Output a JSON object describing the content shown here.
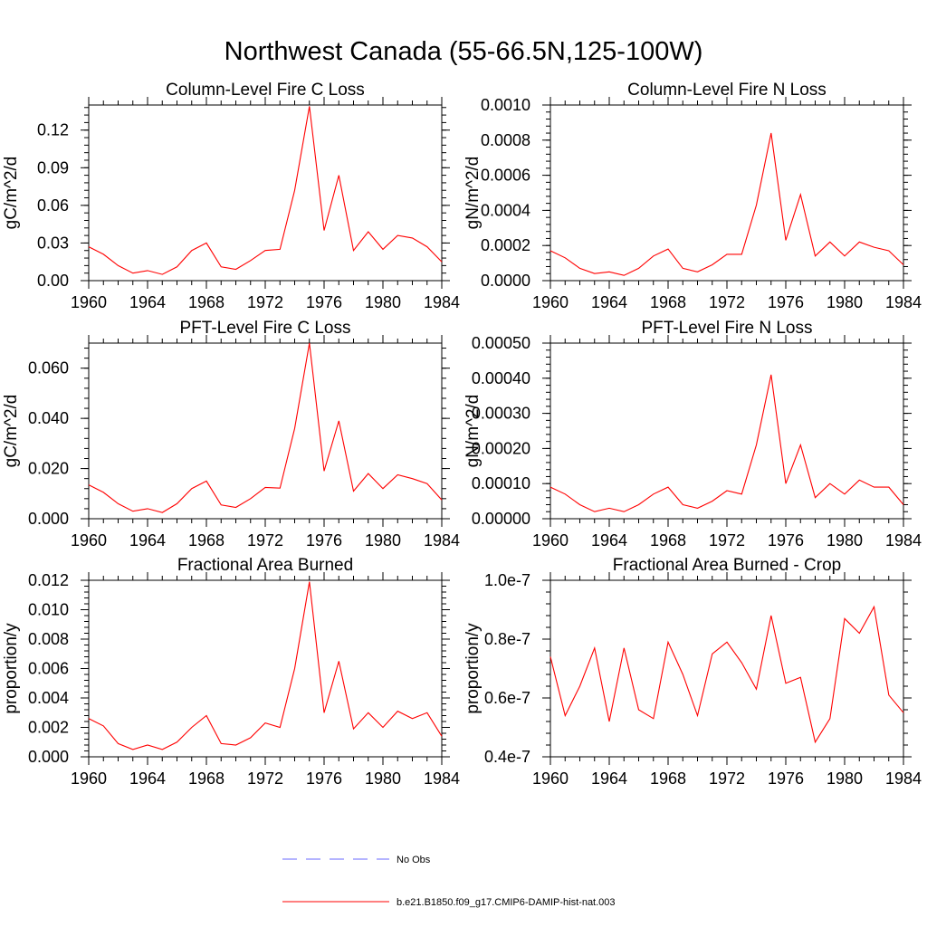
{
  "figure": {
    "title": "Northwest Canada (55-66.5N,125-100W)"
  },
  "colors": {
    "model": "#ff0000",
    "obs": "#6a6aff",
    "axis": "#000000"
  },
  "legend": {
    "obs_label": "No Obs",
    "model_label": "b.e21.B1850.f09_g17.CMIP6-DAMIP-hist-nat.003"
  },
  "chart_data": [
    {
      "type": "line",
      "title": "Column-Level Fire C Loss",
      "ylabel": "gC/m^2/d",
      "xlim": [
        1960,
        1984
      ],
      "ylim": [
        0,
        0.14
      ],
      "xticks": [
        "1960",
        "1964",
        "1968",
        "1972",
        "1976",
        "1980",
        "1984"
      ],
      "yticks": [
        {
          "v": 0,
          "label": "0.00"
        },
        {
          "v": 0.03,
          "label": "0.03"
        },
        {
          "v": 0.06,
          "label": "0.06"
        },
        {
          "v": 0.09,
          "label": "0.09"
        },
        {
          "v": 0.12,
          "label": "0.12"
        }
      ],
      "series": [
        {
          "name": "b.e21.B1850.f09_g17.CMIP6-DAMIP-hist-nat.003",
          "x": [
            1960,
            1961,
            1962,
            1963,
            1964,
            1965,
            1966,
            1967,
            1968,
            1969,
            1970,
            1971,
            1972,
            1973,
            1974,
            1975,
            1976,
            1977,
            1978,
            1979,
            1980,
            1981,
            1982,
            1983,
            1984
          ],
          "y": [
            0.027,
            0.021,
            0.012,
            0.006,
            0.008,
            0.005,
            0.011,
            0.024,
            0.03,
            0.011,
            0.009,
            0.016,
            0.024,
            0.025,
            0.072,
            0.139,
            0.04,
            0.084,
            0.024,
            0.039,
            0.025,
            0.036,
            0.034,
            0.027,
            0.015
          ]
        }
      ]
    },
    {
      "type": "line",
      "title": "Column-Level Fire N Loss",
      "ylabel": "gN/m^2/d",
      "xlim": [
        1960,
        1984
      ],
      "ylim": [
        0,
        0.001
      ],
      "xticks": [
        "1960",
        "1964",
        "1968",
        "1972",
        "1976",
        "1980",
        "1984"
      ],
      "yticks": [
        {
          "v": 0,
          "label": "0.0000"
        },
        {
          "v": 0.0002,
          "label": "0.0002"
        },
        {
          "v": 0.0004,
          "label": "0.0004"
        },
        {
          "v": 0.0006,
          "label": "0.0006"
        },
        {
          "v": 0.0008,
          "label": "0.0008"
        },
        {
          "v": 0.001,
          "label": "0.0010"
        }
      ],
      "series": [
        {
          "name": "b.e21.B1850.f09_g17.CMIP6-DAMIP-hist-nat.003",
          "x": [
            1960,
            1961,
            1962,
            1963,
            1964,
            1965,
            1966,
            1967,
            1968,
            1969,
            1970,
            1971,
            1972,
            1973,
            1974,
            1975,
            1976,
            1977,
            1978,
            1979,
            1980,
            1981,
            1982,
            1983,
            1984
          ],
          "y": [
            0.00017,
            0.00013,
            7e-05,
            4e-05,
            5e-05,
            3e-05,
            7e-05,
            0.00014,
            0.00018,
            7e-05,
            5e-05,
            9e-05,
            0.00015,
            0.00015,
            0.00043,
            0.00084,
            0.00023,
            0.00049,
            0.00014,
            0.00022,
            0.00014,
            0.00022,
            0.00019,
            0.00017,
            9e-05
          ]
        }
      ]
    },
    {
      "type": "line",
      "title": "PFT-Level Fire C Loss",
      "ylabel": "gC/m^2/d",
      "xlim": [
        1960,
        1984
      ],
      "ylim": [
        0,
        0.07
      ],
      "xticks": [
        "1960",
        "1964",
        "1968",
        "1972",
        "1976",
        "1980",
        "1984"
      ],
      "yticks": [
        {
          "v": 0,
          "label": "0.000"
        },
        {
          "v": 0.02,
          "label": "0.020"
        },
        {
          "v": 0.04,
          "label": "0.040"
        },
        {
          "v": 0.06,
          "label": "0.060"
        }
      ],
      "series": [
        {
          "name": "b.e21.B1850.f09_g17.CMIP6-DAMIP-hist-nat.003",
          "x": [
            1960,
            1961,
            1962,
            1963,
            1964,
            1965,
            1966,
            1967,
            1968,
            1969,
            1970,
            1971,
            1972,
            1973,
            1974,
            1975,
            1976,
            1977,
            1978,
            1979,
            1980,
            1981,
            1982,
            1983,
            1984
          ],
          "y": [
            0.0135,
            0.0105,
            0.006,
            0.003,
            0.004,
            0.0025,
            0.006,
            0.012,
            0.015,
            0.0055,
            0.0045,
            0.008,
            0.0125,
            0.0122,
            0.036,
            0.07,
            0.019,
            0.039,
            0.011,
            0.018,
            0.012,
            0.0175,
            0.016,
            0.014,
            0.0075
          ]
        }
      ]
    },
    {
      "type": "line",
      "title": "PFT-Level Fire N Loss",
      "ylabel": "gN/m^2/d",
      "xlim": [
        1960,
        1984
      ],
      "ylim": [
        0,
        0.0005
      ],
      "xticks": [
        "1960",
        "1964",
        "1968",
        "1972",
        "1976",
        "1980",
        "1984"
      ],
      "yticks": [
        {
          "v": 0,
          "label": "0.00000"
        },
        {
          "v": 0.0001,
          "label": "0.00010"
        },
        {
          "v": 0.0002,
          "label": "0.00020"
        },
        {
          "v": 0.0003,
          "label": "0.00030"
        },
        {
          "v": 0.0004,
          "label": "0.00040"
        },
        {
          "v": 0.0005,
          "label": "0.00050"
        }
      ],
      "series": [
        {
          "name": "b.e21.B1850.f09_g17.CMIP6-DAMIP-hist-nat.003",
          "x": [
            1960,
            1961,
            1962,
            1963,
            1964,
            1965,
            1966,
            1967,
            1968,
            1969,
            1970,
            1971,
            1972,
            1973,
            1974,
            1975,
            1976,
            1977,
            1978,
            1979,
            1980,
            1981,
            1982,
            1983,
            1984
          ],
          "y": [
            9e-05,
            7e-05,
            4e-05,
            2e-05,
            3e-05,
            2e-05,
            4e-05,
            7e-05,
            9e-05,
            4e-05,
            3e-05,
            5e-05,
            8e-05,
            7e-05,
            0.00021,
            0.00041,
            0.0001,
            0.00021,
            6e-05,
            0.0001,
            7e-05,
            0.00011,
            9e-05,
            9e-05,
            4e-05
          ]
        }
      ]
    },
    {
      "type": "line",
      "title": "Fractional Area Burned",
      "ylabel": "proportion/y",
      "xlim": [
        1960,
        1984
      ],
      "ylim": [
        0,
        0.012
      ],
      "xticks": [
        "1960",
        "1964",
        "1968",
        "1972",
        "1976",
        "1980",
        "1984"
      ],
      "yticks": [
        {
          "v": 0,
          "label": "0.000"
        },
        {
          "v": 0.002,
          "label": "0.002"
        },
        {
          "v": 0.004,
          "label": "0.004"
        },
        {
          "v": 0.006,
          "label": "0.006"
        },
        {
          "v": 0.008,
          "label": "0.008"
        },
        {
          "v": 0.01,
          "label": "0.010"
        },
        {
          "v": 0.012,
          "label": "0.012"
        }
      ],
      "series": [
        {
          "name": "b.e21.B1850.f09_g17.CMIP6-DAMIP-hist-nat.003",
          "x": [
            1960,
            1961,
            1962,
            1963,
            1964,
            1965,
            1966,
            1967,
            1968,
            1969,
            1970,
            1971,
            1972,
            1973,
            1974,
            1975,
            1976,
            1977,
            1978,
            1979,
            1980,
            1981,
            1982,
            1983,
            1984
          ],
          "y": [
            0.0026,
            0.0021,
            0.0009,
            0.0005,
            0.0008,
            0.0005,
            0.001,
            0.002,
            0.0028,
            0.0009,
            0.0008,
            0.0013,
            0.0023,
            0.002,
            0.006,
            0.0119,
            0.003,
            0.0065,
            0.0019,
            0.003,
            0.002,
            0.0031,
            0.0026,
            0.003,
            0.0014
          ]
        }
      ]
    },
    {
      "type": "line",
      "title": "Fractional Area Burned - Crop",
      "ylabel": "proportion/y",
      "xlim": [
        1960,
        1984
      ],
      "ylim": [
        4e-08,
        1e-07
      ],
      "xticks": [
        "1960",
        "1964",
        "1968",
        "1972",
        "1976",
        "1980",
        "1984"
      ],
      "yticks": [
        {
          "v": 4e-08,
          "label": "0.4e-7"
        },
        {
          "v": 6e-08,
          "label": "0.6e-7"
        },
        {
          "v": 8e-08,
          "label": "0.8e-7"
        },
        {
          "v": 1e-07,
          "label": "1.0e-7"
        }
      ],
      "series": [
        {
          "name": "b.e21.B1850.f09_g17.CMIP6-DAMIP-hist-nat.003",
          "x": [
            1960,
            1961,
            1962,
            1963,
            1964,
            1965,
            1966,
            1967,
            1968,
            1969,
            1970,
            1971,
            1972,
            1973,
            1974,
            1975,
            1976,
            1977,
            1978,
            1979,
            1980,
            1981,
            1982,
            1983,
            1984
          ],
          "y": [
            7.4e-08,
            5.4e-08,
            6.4e-08,
            7.7e-08,
            5.2e-08,
            7.7e-08,
            5.6e-08,
            5.3e-08,
            7.9e-08,
            6.8e-08,
            5.4e-08,
            7.5e-08,
            7.9e-08,
            7.2e-08,
            6.3e-08,
            8.8e-08,
            6.5e-08,
            6.7e-08,
            4.5e-08,
            5.3e-08,
            8.7e-08,
            8.2e-08,
            9.1e-08,
            6.1e-08,
            5.5e-08
          ]
        }
      ]
    }
  ]
}
